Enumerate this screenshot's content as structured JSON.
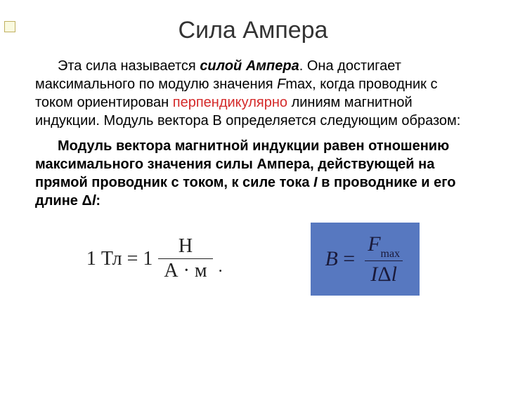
{
  "title": "Сила Ампера",
  "paragraph1": {
    "t1": "Эта сила называется ",
    "t2": "силой Ампера",
    "t3": ". Она достигает максимального по модулю значения ",
    "t4": "F",
    "t5": "max, когда проводник с током ориентирован ",
    "t6": "перпендикулярно",
    "t7": " ",
    "t8": "линиям магнитной индукции. Модуль вектора   B   определяется следующим образом:"
  },
  "paragraph2": {
    "t1": "Модуль вектора магнитной индукции равен отношению максимального значения силы Ампера, действующей на прямой проводник с током, к силе тока ",
    "t2": "I",
    "t3": " в проводнике и его длине Δ",
    "t4": "l",
    "t5": ":"
  },
  "formula1": {
    "lhs": "1 Тл = 1",
    "num": "Н",
    "den": "А · м",
    "period": "."
  },
  "formula2": {
    "lhs_var": "B",
    "eq": " = ",
    "num_var": "F",
    "num_sub": "max",
    "den_var1": "I",
    "den_delta": "Δ",
    "den_var2": "l",
    "box_bg": "#5778c0"
  },
  "colors": {
    "red": "#d42a2a",
    "text": "#000000",
    "title": "#333333"
  }
}
